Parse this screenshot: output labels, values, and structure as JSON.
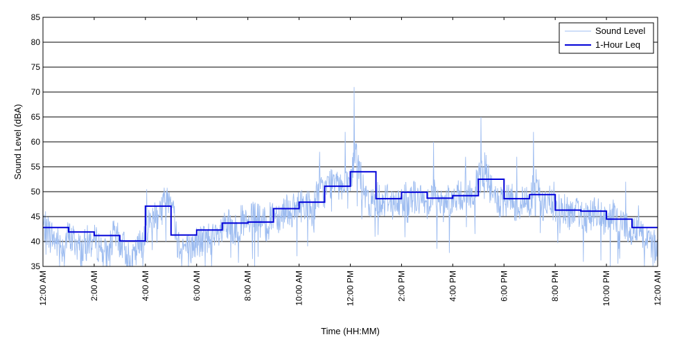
{
  "chart_data": {
    "type": "line",
    "title": "",
    "xlabel": "Time (HH:MM)",
    "ylabel": "Sound Level (dBA)",
    "xlim": [
      0,
      24
    ],
    "ylim": [
      35,
      85
    ],
    "y_ticks": [
      35,
      40,
      45,
      50,
      55,
      60,
      65,
      70,
      75,
      80,
      85
    ],
    "x_ticks": [
      {
        "hour": 0,
        "label": "12:00 AM"
      },
      {
        "hour": 2,
        "label": "2:00 AM"
      },
      {
        "hour": 4,
        "label": "4:00 AM"
      },
      {
        "hour": 6,
        "label": "6:00 AM"
      },
      {
        "hour": 8,
        "label": "8:00 AM"
      },
      {
        "hour": 10,
        "label": "10:00 AM"
      },
      {
        "hour": 12,
        "label": "12:00 PM"
      },
      {
        "hour": 14,
        "label": "2:00 PM"
      },
      {
        "hour": 16,
        "label": "4:00 PM"
      },
      {
        "hour": 18,
        "label": "6:00 PM"
      },
      {
        "hour": 20,
        "label": "8:00 PM"
      },
      {
        "hour": 22,
        "label": "10:00 PM"
      },
      {
        "hour": 24,
        "label": "12:00 AM"
      }
    ],
    "grid": "horizontal",
    "legend_position": "top-right",
    "series": [
      {
        "name": "Sound Level",
        "color": "#9dbcf0",
        "style": "thin-line",
        "x": [
          0.0,
          0.25,
          0.5,
          0.75,
          1.0,
          1.25,
          1.5,
          1.75,
          2.0,
          2.25,
          2.5,
          2.75,
          3.0,
          3.25,
          3.5,
          3.75,
          4.0,
          4.25,
          4.5,
          4.75,
          5.0,
          5.25,
          5.5,
          5.75,
          6.0,
          6.25,
          6.5,
          6.75,
          7.0,
          7.25,
          7.5,
          7.75,
          8.0,
          8.25,
          8.5,
          8.75,
          9.0,
          9.25,
          9.5,
          9.75,
          10.0,
          10.25,
          10.5,
          10.75,
          11.0,
          11.25,
          11.5,
          11.75,
          12.0,
          12.25,
          12.5,
          12.75,
          13.0,
          13.25,
          13.5,
          13.75,
          14.0,
          14.25,
          14.5,
          14.75,
          15.0,
          15.25,
          15.5,
          15.75,
          16.0,
          16.25,
          16.5,
          16.75,
          17.0,
          17.25,
          17.5,
          17.75,
          18.0,
          18.25,
          18.5,
          18.75,
          19.0,
          19.25,
          19.5,
          19.75,
          20.0,
          20.25,
          20.5,
          20.75,
          21.0,
          21.25,
          21.5,
          21.75,
          22.0,
          22.25,
          22.5,
          22.75,
          23.0,
          23.25,
          23.5,
          23.75,
          24.0
        ],
        "values": [
          43,
          42,
          40,
          39,
          41,
          40,
          38,
          40,
          40,
          39,
          37,
          41,
          40,
          38,
          36,
          39,
          42,
          45,
          46,
          48,
          50,
          40,
          39,
          38,
          40,
          40,
          41,
          40,
          42,
          43,
          42,
          44,
          43,
          45,
          44,
          43,
          46,
          45,
          47,
          46,
          47,
          48,
          46,
          50,
          50,
          52,
          54,
          50,
          52,
          58,
          50,
          47,
          49,
          48,
          49,
          47,
          48,
          50,
          49,
          48,
          48,
          50,
          47,
          49,
          48,
          49,
          50,
          49,
          52,
          55,
          50,
          48,
          47,
          49,
          47,
          48,
          48,
          52,
          47,
          48,
          46,
          47,
          46,
          45,
          46,
          45,
          46,
          45,
          43,
          45,
          44,
          43,
          42,
          44,
          41,
          40,
          38
        ],
        "spikes": [
          {
            "x": 4.05,
            "y": 50.5
          },
          {
            "x": 10.8,
            "y": 58
          },
          {
            "x": 11.8,
            "y": 62
          },
          {
            "x": 12.15,
            "y": 71
          },
          {
            "x": 15.25,
            "y": 60
          },
          {
            "x": 16.5,
            "y": 57
          },
          {
            "x": 17.1,
            "y": 65
          },
          {
            "x": 18.5,
            "y": 57
          },
          {
            "x": 19.15,
            "y": 62
          },
          {
            "x": 19.95,
            "y": 52
          },
          {
            "x": 22.75,
            "y": 52
          }
        ]
      },
      {
        "name": "1-Hour Leq",
        "color": "#0000d8",
        "style": "step",
        "values": [
          42.8,
          41.9,
          41.2,
          40.1,
          47.1,
          41.3,
          42.3,
          43.7,
          43.9,
          46.6,
          47.9,
          51.1,
          54.0,
          48.6,
          49.9,
          48.7,
          49.2,
          52.5,
          48.6,
          49.4,
          46.3,
          46.1,
          44.5,
          42.8
        ]
      }
    ]
  }
}
